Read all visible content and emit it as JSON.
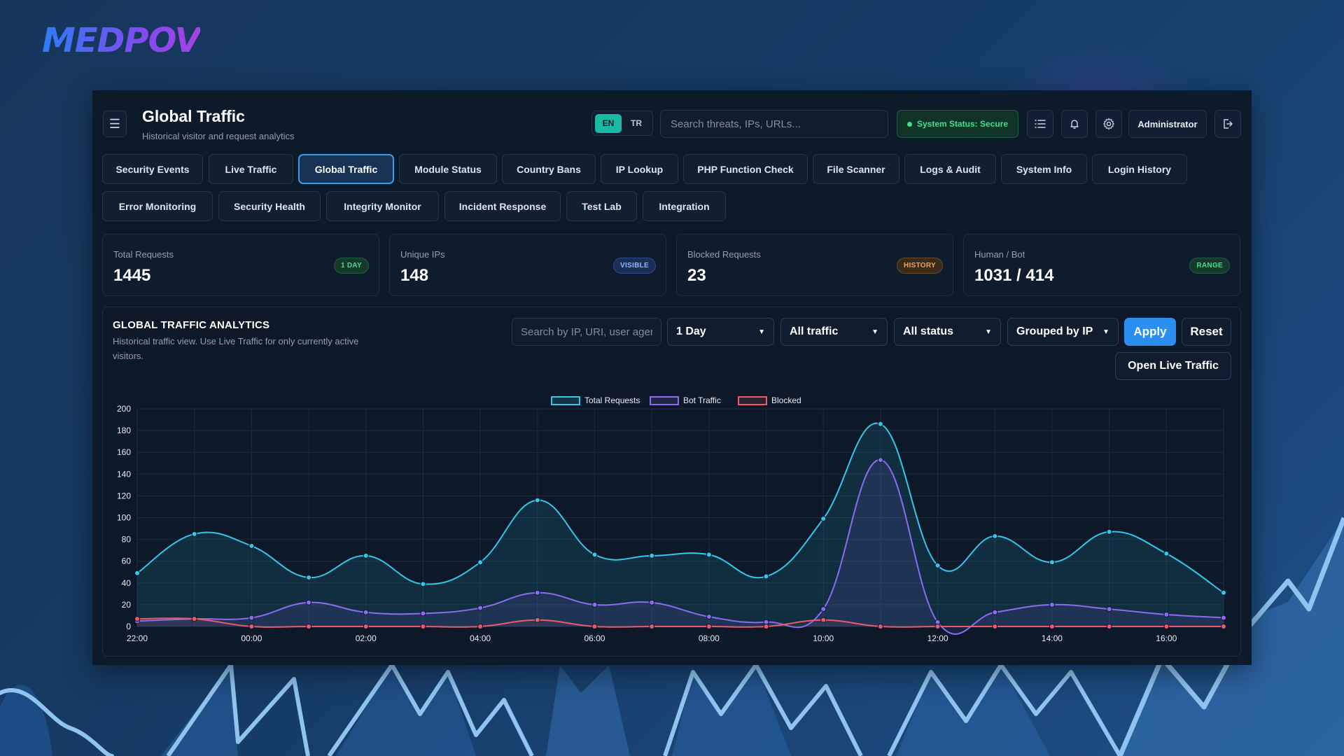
{
  "brand": {
    "logo_text": "MEDPOV"
  },
  "header": {
    "title": "Global Traffic",
    "subtitle": "Historical visitor and request analytics",
    "lang": {
      "en": "EN",
      "tr": "TR",
      "active": "EN"
    },
    "search_placeholder": "Search threats, IPs, URLs...",
    "status": "System Status: Secure",
    "user": "Administrator",
    "icons": [
      "menu-icon",
      "list-icon",
      "bell-icon",
      "gear-icon",
      "logout-icon"
    ]
  },
  "tabs": {
    "row1": [
      "Security Events",
      "Live Traffic",
      "Global Traffic",
      "Module Status",
      "Country Bans",
      "IP Lookup",
      "PHP Function Check",
      "File Scanner",
      "Logs & Audit",
      "System Info",
      "Login History"
    ],
    "row2": [
      "Error Monitoring",
      "Security Health",
      "Integrity Monitor",
      "Incident Response",
      "Test Lab",
      "Integration"
    ],
    "active": "Global Traffic"
  },
  "stats": [
    {
      "label": "Total Requests",
      "value": "1445",
      "badge": "1 DAY",
      "badge_color": "#3ee08d"
    },
    {
      "label": "Unique IPs",
      "value": "148",
      "badge": "VISIBLE",
      "badge_color": "#6fa8ff"
    },
    {
      "label": "Blocked Requests",
      "value": "23",
      "badge": "HISTORY",
      "badge_color": "#f0a35b"
    },
    {
      "label": "Human / Bot",
      "value": "1031 / 414",
      "badge": "RANGE",
      "badge_color": "#3ee08d"
    }
  ],
  "analytics": {
    "title": "GLOBAL TRAFFIC ANALYTICS",
    "description": "Historical traffic view. Use Live Traffic for only currently active visitors.",
    "filter_placeholder": "Search by IP, URI, user agent",
    "range": "1 Day",
    "traffic": "All traffic",
    "status": "All status",
    "group": "Grouped by IP",
    "apply": "Apply",
    "reset": "Reset",
    "open_live": "Open Live Traffic"
  },
  "colors": {
    "total": "#35c6ea",
    "bot": "#8b6cf0",
    "blocked": "#ea5a6c",
    "accent": "#2a8ff0"
  },
  "chart_data": {
    "type": "line",
    "x": [
      "22:00",
      "23:00",
      "00:00",
      "01:00",
      "02:00",
      "03:00",
      "04:00",
      "05:00",
      "06:00",
      "07:00",
      "08:00",
      "09:00",
      "10:00",
      "11:00",
      "12:00",
      "13:00",
      "14:00",
      "15:00",
      "16:00",
      "17:00"
    ],
    "x_tick_labels": [
      "22:00",
      "00:00",
      "02:00",
      "04:00",
      "06:00",
      "08:00",
      "10:00",
      "12:00",
      "14:00",
      "16:00"
    ],
    "series": [
      {
        "name": "Total Requests",
        "values": [
          49,
          85,
          74,
          45,
          65,
          39,
          59,
          116,
          66,
          65,
          66,
          46,
          99,
          186,
          56,
          83,
          59,
          87,
          67,
          31
        ]
      },
      {
        "name": "Bot Traffic",
        "values": [
          5,
          7,
          8,
          22,
          13,
          12,
          17,
          31,
          20,
          22,
          9,
          4,
          16,
          153,
          4,
          13,
          20,
          16,
          11,
          8
        ]
      },
      {
        "name": "Blocked",
        "values": [
          7,
          7,
          0,
          0,
          0,
          0,
          0,
          6,
          0,
          0,
          0,
          0,
          6,
          0,
          0,
          0,
          0,
          0,
          0,
          0
        ]
      }
    ],
    "ylim": [
      0,
      200
    ],
    "y_ticks": [
      0,
      20,
      40,
      60,
      80,
      100,
      120,
      140,
      160,
      180,
      200
    ],
    "grid": true,
    "legend": "top-center"
  }
}
